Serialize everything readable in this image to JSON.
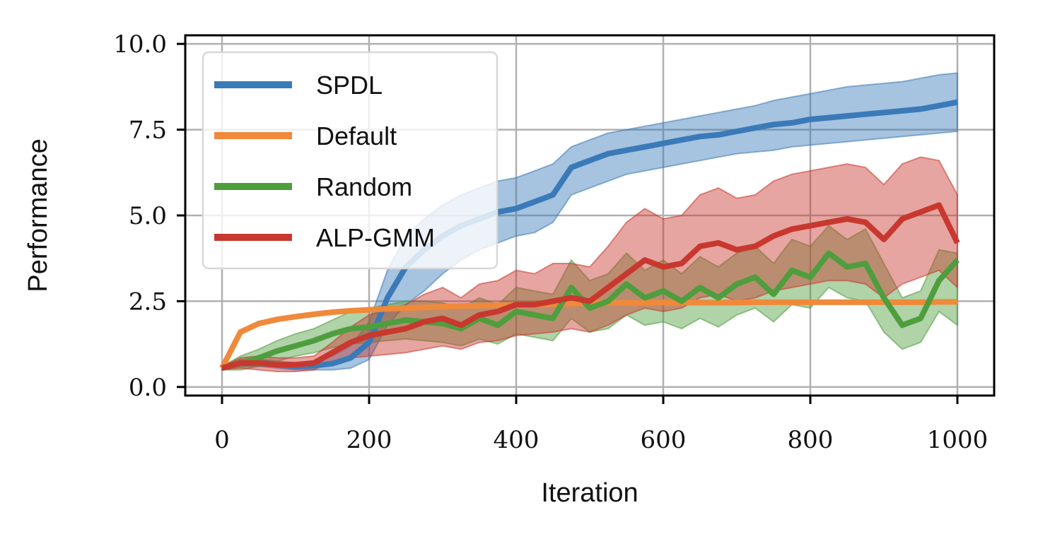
{
  "chart_data": {
    "type": "line",
    "title": "",
    "xlabel": "Iteration",
    "ylabel": "Performance",
    "xlim": [
      -50,
      1050
    ],
    "ylim": [
      -0.25,
      10.25
    ],
    "xticks": [
      0,
      200,
      400,
      600,
      800,
      1000
    ],
    "yticks": [
      0.0,
      2.5,
      5.0,
      7.5,
      10.0
    ],
    "xtick_labels": [
      "0",
      "200",
      "400",
      "600",
      "800",
      "1000"
    ],
    "ytick_labels": [
      "0.0",
      "2.5",
      "5.0",
      "7.5",
      "10.0"
    ],
    "grid": true,
    "legend": {
      "placement": "top-left"
    },
    "x": [
      0,
      25,
      50,
      75,
      100,
      125,
      150,
      175,
      200,
      225,
      250,
      275,
      300,
      325,
      350,
      375,
      400,
      425,
      450,
      475,
      500,
      525,
      550,
      575,
      600,
      625,
      650,
      675,
      700,
      725,
      750,
      775,
      800,
      825,
      850,
      875,
      900,
      925,
      950,
      975,
      1000
    ],
    "series": [
      {
        "name": "SPDL",
        "color": "#3a7ab8",
        "values": [
          0.55,
          0.7,
          0.7,
          0.65,
          0.6,
          0.62,
          0.68,
          0.85,
          1.3,
          2.6,
          3.5,
          4.0,
          4.4,
          4.7,
          4.9,
          5.1,
          5.2,
          5.4,
          5.6,
          6.4,
          6.6,
          6.8,
          6.9,
          7.0,
          7.1,
          7.2,
          7.3,
          7.35,
          7.45,
          7.55,
          7.65,
          7.7,
          7.8,
          7.85,
          7.9,
          7.95,
          8.0,
          8.05,
          8.1,
          8.2,
          8.3
        ],
        "band_lower": [
          0.5,
          0.6,
          0.6,
          0.55,
          0.5,
          0.5,
          0.5,
          0.55,
          0.8,
          1.8,
          2.4,
          2.8,
          3.3,
          3.7,
          4.0,
          4.2,
          4.4,
          4.5,
          4.8,
          5.6,
          5.8,
          6.0,
          6.2,
          6.3,
          6.4,
          6.5,
          6.6,
          6.7,
          6.8,
          6.85,
          6.9,
          7.0,
          7.05,
          7.1,
          7.15,
          7.2,
          7.25,
          7.3,
          7.35,
          7.4,
          7.45
        ],
        "band_upper": [
          0.6,
          0.8,
          0.8,
          0.75,
          0.7,
          0.75,
          0.9,
          1.2,
          1.9,
          3.4,
          4.4,
          4.9,
          5.3,
          5.6,
          5.8,
          6.0,
          6.1,
          6.3,
          6.5,
          7.0,
          7.2,
          7.4,
          7.5,
          7.6,
          7.7,
          7.8,
          7.9,
          8.0,
          8.1,
          8.2,
          8.35,
          8.45,
          8.55,
          8.65,
          8.75,
          8.8,
          8.85,
          8.9,
          9.0,
          9.1,
          9.15
        ]
      },
      {
        "name": "Default",
        "color": "#f0893a",
        "values": [
          0.55,
          1.6,
          1.85,
          1.97,
          2.05,
          2.12,
          2.18,
          2.22,
          2.25,
          2.28,
          2.3,
          2.32,
          2.34,
          2.36,
          2.37,
          2.38,
          2.39,
          2.4,
          2.42,
          2.43,
          2.44,
          2.45,
          2.45,
          2.46,
          2.46,
          2.46,
          2.46,
          2.46,
          2.46,
          2.47,
          2.47,
          2.47,
          2.47,
          2.47,
          2.47,
          2.47,
          2.47,
          2.47,
          2.47,
          2.48,
          2.48
        ]
      },
      {
        "name": "Random",
        "color": "#4f9e3e",
        "values": [
          0.55,
          0.7,
          0.85,
          1.05,
          1.2,
          1.35,
          1.55,
          1.7,
          1.75,
          1.85,
          1.95,
          1.9,
          1.85,
          1.7,
          2.0,
          1.8,
          2.2,
          2.1,
          2.0,
          2.9,
          2.3,
          2.5,
          3.0,
          2.6,
          2.8,
          2.5,
          2.9,
          2.6,
          3.0,
          3.2,
          2.7,
          3.4,
          3.2,
          3.9,
          3.5,
          3.6,
          2.6,
          1.8,
          2.0,
          3.1,
          3.7
        ],
        "band_lower": [
          0.5,
          0.5,
          0.6,
          0.75,
          0.9,
          1.0,
          1.15,
          1.25,
          1.3,
          1.35,
          1.4,
          1.35,
          1.3,
          1.2,
          1.4,
          1.25,
          1.55,
          1.45,
          1.35,
          2.0,
          1.6,
          1.7,
          2.1,
          1.8,
          1.9,
          1.7,
          2.0,
          1.75,
          2.1,
          2.3,
          1.9,
          2.4,
          2.3,
          2.9,
          2.6,
          2.5,
          1.6,
          1.1,
          1.3,
          2.2,
          1.8
        ],
        "band_upper": [
          0.6,
          0.9,
          1.1,
          1.35,
          1.55,
          1.7,
          1.95,
          2.2,
          2.3,
          2.4,
          2.5,
          2.5,
          2.45,
          2.3,
          2.6,
          2.4,
          2.9,
          2.8,
          2.7,
          3.7,
          3.1,
          3.3,
          3.9,
          3.4,
          3.7,
          3.3,
          3.8,
          3.5,
          3.9,
          4.1,
          3.6,
          4.3,
          4.1,
          4.7,
          4.3,
          4.6,
          3.6,
          2.6,
          2.8,
          4.0,
          3.9
        ]
      },
      {
        "name": "ALP-GMM",
        "color": "#c8382e",
        "values": [
          0.55,
          0.7,
          0.7,
          0.65,
          0.65,
          0.7,
          1.0,
          1.3,
          1.5,
          1.6,
          1.7,
          1.9,
          2.0,
          1.8,
          2.1,
          2.2,
          2.4,
          2.4,
          2.5,
          2.6,
          2.5,
          2.9,
          3.3,
          3.7,
          3.5,
          3.6,
          4.1,
          4.2,
          4.0,
          4.1,
          4.4,
          4.6,
          4.7,
          4.8,
          4.9,
          4.8,
          4.3,
          4.9,
          5.1,
          5.3,
          4.2
        ],
        "band_lower": [
          0.5,
          0.55,
          0.5,
          0.45,
          0.45,
          0.5,
          0.75,
          0.85,
          0.9,
          0.95,
          1.0,
          1.1,
          1.2,
          1.1,
          1.3,
          1.35,
          1.5,
          1.55,
          1.6,
          1.7,
          1.6,
          1.8,
          2.1,
          2.3,
          2.2,
          2.3,
          2.6,
          2.7,
          2.5,
          2.6,
          2.8,
          2.9,
          3.0,
          3.1,
          3.1,
          3.0,
          2.6,
          3.0,
          3.2,
          3.4,
          2.9
        ],
        "band_upper": [
          0.6,
          0.85,
          0.9,
          0.85,
          0.85,
          0.9,
          1.3,
          1.75,
          2.1,
          2.25,
          2.4,
          2.7,
          2.9,
          2.6,
          3.0,
          3.1,
          3.4,
          3.3,
          3.6,
          3.6,
          3.5,
          4.1,
          4.8,
          5.2,
          4.9,
          5.0,
          5.6,
          5.8,
          5.5,
          5.6,
          6.0,
          6.2,
          6.3,
          6.4,
          6.5,
          6.4,
          5.9,
          6.5,
          6.7,
          6.6,
          5.6
        ]
      }
    ]
  }
}
